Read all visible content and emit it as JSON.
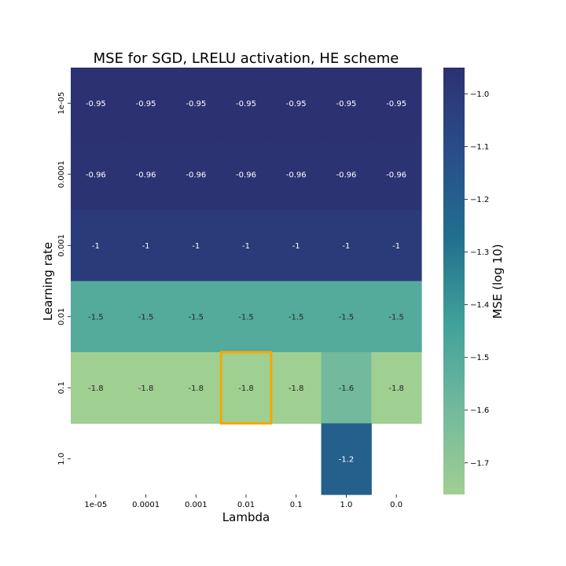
{
  "chart_data": {
    "type": "heatmap",
    "title": "MSE for SGD, LRELU activation, HE scheme",
    "xlabel": "Lambda",
    "ylabel": "Learning rate",
    "x_categories": [
      "1e-05",
      "0.0001",
      "0.001",
      "0.01",
      "0.1",
      "1.0",
      "0.0"
    ],
    "y_categories": [
      "1e-05",
      "0.0001",
      "0.001",
      "0.01",
      "0.1",
      "1.0"
    ],
    "values": [
      [
        -0.95,
        -0.95,
        -0.95,
        -0.95,
        -0.95,
        -0.95,
        -0.95
      ],
      [
        -0.96,
        -0.96,
        -0.96,
        -0.96,
        -0.96,
        -0.96,
        -0.96
      ],
      [
        -1.0,
        -1.0,
        -1.0,
        -1.0,
        -1.0,
        -1.0,
        -1.0
      ],
      [
        -1.5,
        -1.5,
        -1.5,
        -1.5,
        -1.5,
        -1.5,
        -1.5
      ],
      [
        -1.8,
        -1.8,
        -1.8,
        -1.8,
        -1.8,
        -1.6,
        -1.8
      ],
      [
        null,
        null,
        null,
        null,
        null,
        -1.2,
        null
      ]
    ],
    "annotations": [
      [
        "-0.95",
        "-0.95",
        "-0.95",
        "-0.95",
        "-0.95",
        "-0.95",
        "-0.95"
      ],
      [
        "-0.96",
        "-0.96",
        "-0.96",
        "-0.96",
        "-0.96",
        "-0.96",
        "-0.96"
      ],
      [
        "-1",
        "-1",
        "-1",
        "-1",
        "-1",
        "-1",
        "-1"
      ],
      [
        "-1.5",
        "-1.5",
        "-1.5",
        "-1.5",
        "-1.5",
        "-1.5",
        "-1.5"
      ],
      [
        "-1.8",
        "-1.8",
        "-1.8",
        "-1.8",
        "-1.8",
        "-1.6",
        "-1.8"
      ],
      [
        "",
        "",
        "",
        "",
        "",
        "-1.2",
        ""
      ]
    ],
    "highlight_cell": {
      "row": 4,
      "col": 3,
      "color": "#f5a800"
    },
    "colorbar": {
      "label": "MSE (log 10)",
      "range": [
        -1.76,
        -0.95
      ],
      "ticks": [
        -1.0,
        -1.1,
        -1.2,
        -1.3,
        -1.4,
        -1.5,
        -1.6,
        -1.7
      ],
      "tick_labels": [
        "−1.0",
        "−1.1",
        "−1.2",
        "−1.3",
        "−1.4",
        "−1.5",
        "−1.6",
        "−1.7"
      ],
      "colormap": "crest",
      "colormap_stops": [
        "#2c3172",
        "#2a4d8a",
        "#216f8e",
        "#41a19a",
        "#72b99d",
        "#a0cf92"
      ]
    },
    "grid": false,
    "legend": "none"
  }
}
